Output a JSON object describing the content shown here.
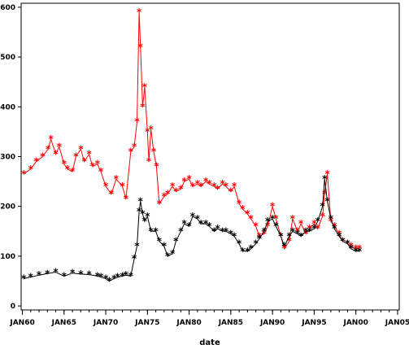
{
  "chart_data": {
    "type": "line",
    "xlabel": "date",
    "ylabel": "",
    "x_axis": "date",
    "xlim": [
      "1960-01-01",
      "2005-01-01"
    ],
    "ylim": [
      0,
      600
    ],
    "x_ticks": [
      "JAN60",
      "JAN65",
      "JAN70",
      "JAN75",
      "JAN80",
      "JAN85",
      "JAN90",
      "JAN95",
      "JAN00",
      "JAN05"
    ],
    "y_ticks": [
      0,
      100,
      200,
      300,
      400,
      500,
      600
    ],
    "grid": false,
    "legend": "none",
    "marker": "*",
    "series": [
      {
        "color": "#ff0000",
        "x": [
          "1960-03",
          "1961-01",
          "1961-09",
          "1962-06",
          "1963-02",
          "1963-06",
          "1964-01",
          "1964-06",
          "1965-01",
          "1965-06",
          "1966-01",
          "1966-06",
          "1967-01",
          "1967-06",
          "1968-01",
          "1968-06",
          "1969-01",
          "1969-06",
          "1970-01",
          "1970-09",
          "1971-04",
          "1972-01",
          "1972-06",
          "1973-01",
          "1973-06",
          "1973-10",
          "1974-01",
          "1974-03",
          "1974-06",
          "1974-09",
          "1975-01",
          "1975-03",
          "1975-06",
          "1975-10",
          "1976-02",
          "1976-06",
          "1977-01",
          "1977-06",
          "1978-01",
          "1978-06",
          "1979-01",
          "1979-06",
          "1980-01",
          "1980-06",
          "1981-01",
          "1981-06",
          "1982-01",
          "1982-06",
          "1983-01",
          "1983-06",
          "1984-01",
          "1984-06",
          "1985-01",
          "1985-06",
          "1986-01",
          "1986-06",
          "1987-01",
          "1987-06",
          "1988-01",
          "1988-06",
          "1989-01",
          "1989-06",
          "1990-01",
          "1990-06",
          "1991-01",
          "1991-06",
          "1992-01",
          "1992-06",
          "1993-01",
          "1993-06",
          "1994-01",
          "1994-06",
          "1995-01",
          "1995-06",
          "1996-01",
          "1996-04",
          "1996-08",
          "1997-01",
          "1997-06",
          "1998-01",
          "1998-06",
          "1999-01",
          "1999-06",
          "2000-01",
          "2000-06"
        ],
        "y": [
          265,
          275,
          290,
          300,
          315,
          335,
          305,
          320,
          285,
          275,
          270,
          300,
          315,
          290,
          305,
          280,
          285,
          270,
          240,
          225,
          255,
          240,
          215,
          310,
          320,
          370,
          590,
          520,
          400,
          440,
          350,
          290,
          355,
          310,
          280,
          205,
          220,
          225,
          240,
          230,
          235,
          250,
          255,
          240,
          245,
          240,
          250,
          245,
          240,
          235,
          245,
          240,
          230,
          240,
          205,
          195,
          185,
          175,
          160,
          140,
          145,
          160,
          200,
          175,
          140,
          115,
          130,
          175,
          150,
          165,
          145,
          155,
          165,
          155,
          180,
          225,
          265,
          170,
          160,
          145,
          130,
          125,
          120,
          115,
          115
        ]
      },
      {
        "color": "#000000",
        "x": [
          "1960-03",
          "1961-01",
          "1962-01",
          "1963-01",
          "1964-01",
          "1965-01",
          "1966-01",
          "1967-01",
          "1968-01",
          "1969-01",
          "1969-06",
          "1970-01",
          "1970-06",
          "1971-01",
          "1971-06",
          "1972-01",
          "1972-06",
          "1973-01",
          "1973-06",
          "1973-10",
          "1974-01",
          "1974-03",
          "1974-06",
          "1974-09",
          "1975-01",
          "1975-06",
          "1976-01",
          "1976-06",
          "1977-01",
          "1977-06",
          "1978-01",
          "1978-06",
          "1979-01",
          "1979-06",
          "1980-01",
          "1980-06",
          "1981-01",
          "1981-06",
          "1982-01",
          "1982-06",
          "1983-01",
          "1983-06",
          "1984-01",
          "1984-06",
          "1985-01",
          "1985-06",
          "1986-01",
          "1986-06",
          "1987-01",
          "1987-06",
          "1988-01",
          "1988-06",
          "1989-01",
          "1989-06",
          "1990-01",
          "1990-06",
          "1991-01",
          "1991-06",
          "1992-01",
          "1992-06",
          "1993-01",
          "1993-06",
          "1994-01",
          "1994-06",
          "1995-01",
          "1995-06",
          "1996-01",
          "1996-04",
          "1996-08",
          "1997-01",
          "1997-06",
          "1998-01",
          "1998-06",
          "1999-01",
          "1999-06",
          "2000-01",
          "2000-06"
        ],
        "y": [
          55,
          58,
          62,
          65,
          68,
          60,
          66,
          64,
          63,
          60,
          58,
          55,
          50,
          55,
          58,
          60,
          62,
          60,
          95,
          120,
          190,
          210,
          185,
          170,
          180,
          150,
          150,
          130,
          120,
          100,
          105,
          130,
          150,
          165,
          160,
          180,
          175,
          165,
          165,
          160,
          150,
          155,
          150,
          150,
          145,
          140,
          125,
          110,
          110,
          115,
          125,
          135,
          150,
          170,
          175,
          160,
          140,
          120,
          140,
          150,
          145,
          140,
          150,
          150,
          155,
          170,
          200,
          255,
          210,
          175,
          155,
          140,
          130,
          125,
          115,
          110,
          110
        ]
      }
    ]
  }
}
